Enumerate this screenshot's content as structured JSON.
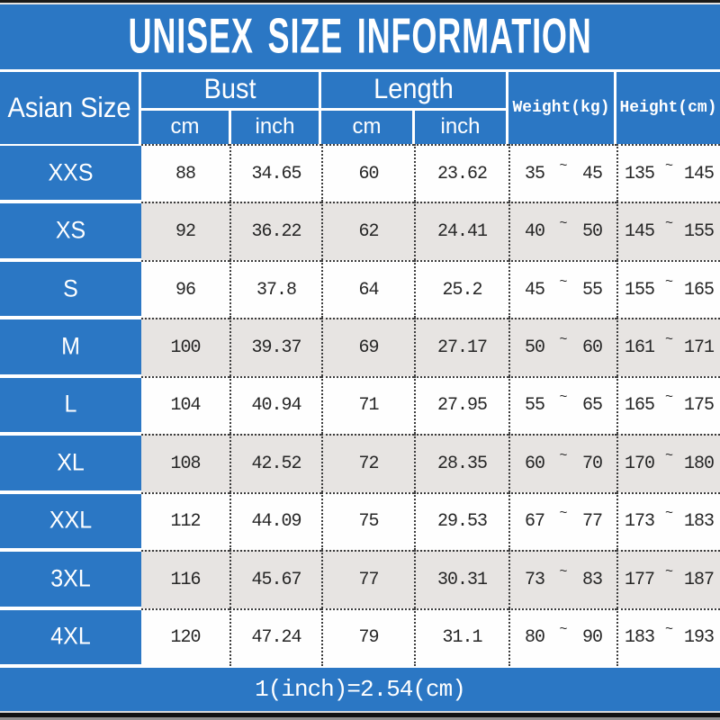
{
  "title": "UNISEX SIZE INFORMATION",
  "footer_note": "1(inch)=2.54(cm)",
  "colors": {
    "blue": "#2b77c4",
    "alt_row_gray": "#e7e4e2",
    "white": "#ffffff",
    "separator_dark": "#3c3c3c"
  },
  "table": {
    "size_header": "Asian Size",
    "groups": [
      {
        "label": "Bust",
        "sub": [
          "cm",
          "inch"
        ]
      },
      {
        "label": "Length",
        "sub": [
          "cm",
          "inch"
        ]
      }
    ],
    "weight_header": "Weight(kg)",
    "height_header": "Height(cm)",
    "tilde": "~",
    "rows": [
      {
        "size": "XXS",
        "bust_cm": "88",
        "bust_inch": "34.65",
        "length_cm": "60",
        "length_inch": "23.62",
        "weight_min": "35",
        "weight_max": "45",
        "height_min": "135",
        "height_max": "145"
      },
      {
        "size": "XS",
        "bust_cm": "92",
        "bust_inch": "36.22",
        "length_cm": "62",
        "length_inch": "24.41",
        "weight_min": "40",
        "weight_max": "50",
        "height_min": "145",
        "height_max": "155"
      },
      {
        "size": "S",
        "bust_cm": "96",
        "bust_inch": "37.8",
        "length_cm": "64",
        "length_inch": "25.2",
        "weight_min": "45",
        "weight_max": "55",
        "height_min": "155",
        "height_max": "165"
      },
      {
        "size": "M",
        "bust_cm": "100",
        "bust_inch": "39.37",
        "length_cm": "69",
        "length_inch": "27.17",
        "weight_min": "50",
        "weight_max": "60",
        "height_min": "161",
        "height_max": "171"
      },
      {
        "size": "L",
        "bust_cm": "104",
        "bust_inch": "40.94",
        "length_cm": "71",
        "length_inch": "27.95",
        "weight_min": "55",
        "weight_max": "65",
        "height_min": "165",
        "height_max": "175"
      },
      {
        "size": "XL",
        "bust_cm": "108",
        "bust_inch": "42.52",
        "length_cm": "72",
        "length_inch": "28.35",
        "weight_min": "60",
        "weight_max": "70",
        "height_min": "170",
        "height_max": "180"
      },
      {
        "size": "XXL",
        "bust_cm": "112",
        "bust_inch": "44.09",
        "length_cm": "75",
        "length_inch": "29.53",
        "weight_min": "67",
        "weight_max": "77",
        "height_min": "173",
        "height_max": "183"
      },
      {
        "size": "3XL",
        "bust_cm": "116",
        "bust_inch": "45.67",
        "length_cm": "77",
        "length_inch": "30.31",
        "weight_min": "73",
        "weight_max": "83",
        "height_min": "177",
        "height_max": "187"
      },
      {
        "size": "4XL",
        "bust_cm": "120",
        "bust_inch": "47.24",
        "length_cm": "79",
        "length_inch": "31.1",
        "weight_min": "80",
        "weight_max": "90",
        "height_min": "183",
        "height_max": "193"
      }
    ]
  },
  "chart_data": {
    "type": "table",
    "title": "UNISEX SIZE INFORMATION",
    "columns": [
      "Asian Size",
      "Bust cm",
      "Bust inch",
      "Length cm",
      "Length inch",
      "Weight(kg)",
      "Height(cm)"
    ],
    "rows": [
      [
        "XXS",
        88,
        34.65,
        60,
        23.62,
        "35~45",
        "135~145"
      ],
      [
        "XS",
        92,
        36.22,
        62,
        24.41,
        "40~50",
        "145~155"
      ],
      [
        "S",
        96,
        37.8,
        64,
        25.2,
        "45~55",
        "155~165"
      ],
      [
        "M",
        100,
        39.37,
        69,
        27.17,
        "50~60",
        "161~171"
      ],
      [
        "L",
        104,
        40.94,
        71,
        27.95,
        "55~65",
        "165~175"
      ],
      [
        "XL",
        108,
        42.52,
        72,
        28.35,
        "60~70",
        "170~180"
      ],
      [
        "XXL",
        112,
        44.09,
        75,
        29.53,
        "67~77",
        "173~183"
      ],
      [
        "3XL",
        116,
        45.67,
        77,
        30.31,
        "73~83",
        "177~187"
      ],
      [
        "4XL",
        120,
        47.24,
        79,
        31.1,
        "80~90",
        "183~193"
      ]
    ],
    "note": "1(inch)=2.54(cm)"
  }
}
